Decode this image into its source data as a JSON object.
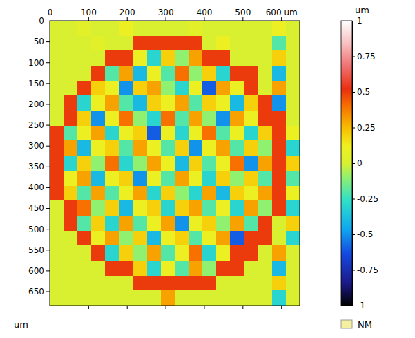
{
  "chart_data": {
    "type": "heatmap",
    "x_edges": [
      0,
      36,
      72,
      108,
      144,
      180,
      216,
      252,
      288,
      324,
      360,
      396,
      432,
      468,
      504,
      540,
      576,
      612,
      648
    ],
    "y_edges": [
      0,
      36,
      72,
      108,
      144,
      180,
      216,
      252,
      288,
      324,
      360,
      396,
      432,
      468,
      504,
      540,
      576,
      612,
      648,
      684
    ],
    "values": [
      [
        0,
        0,
        0.05,
        0,
        0,
        0.1,
        0,
        0,
        0,
        0,
        0.05,
        0,
        0,
        0,
        0,
        0,
        0.1,
        0
      ],
      [
        0,
        0,
        0,
        0.05,
        0,
        0,
        0.5,
        0.5,
        0.5,
        0.5,
        0.5,
        0,
        0.1,
        0,
        0,
        0,
        -0.2,
        0
      ],
      [
        0,
        0,
        0,
        0,
        0.5,
        0.5,
        0.1,
        -0.3,
        0.2,
        -0.1,
        0.3,
        0.5,
        0.5,
        0,
        0,
        0,
        0.2,
        0
      ],
      [
        0,
        0,
        0,
        0.5,
        -0.2,
        0.3,
        -0.4,
        0.1,
        -0.2,
        0.4,
        -0.1,
        0.2,
        -0.3,
        0.5,
        0.5,
        0,
        -0.4,
        0
      ],
      [
        0,
        0,
        0.5,
        0.2,
        0.1,
        -0.5,
        0.2,
        0.3,
        -0.1,
        -0.3,
        0.1,
        -0.6,
        0.3,
        0.1,
        0.5,
        0,
        0.3,
        0
      ],
      [
        0,
        0.5,
        -0.3,
        0.1,
        0.3,
        -0.2,
        -0.4,
        0.2,
        0.1,
        0.3,
        -0.2,
        0.2,
        0.1,
        -0.4,
        0.2,
        0.5,
        -0.5,
        0
      ],
      [
        0,
        0.5,
        0.2,
        -0.5,
        0.1,
        0.4,
        -0.1,
        -0.3,
        0.4,
        -0.2,
        0.3,
        -0.1,
        -0.5,
        0.3,
        0.1,
        0.5,
        0.5,
        0
      ],
      [
        0.5,
        -0.2,
        0.1,
        0.3,
        -0.3,
        0.1,
        0.2,
        -0.6,
        0.1,
        -0.3,
        0.1,
        0.4,
        -0.2,
        0.1,
        -0.3,
        0.2,
        0.5,
        0.1
      ],
      [
        0.5,
        0.3,
        -0.4,
        0.1,
        0.2,
        -0.2,
        0.3,
        0.1,
        -0.2,
        0.2,
        -0.5,
        0.1,
        0.3,
        -0.2,
        0.2,
        -0.1,
        0.5,
        -0.3
      ],
      [
        0.5,
        -0.3,
        0.2,
        -0.1,
        0.4,
        -0.3,
        -0.1,
        0.3,
        0.1,
        -0.4,
        0.2,
        -0.2,
        0.1,
        0.4,
        -0.5,
        0.3,
        0.5,
        0.2
      ],
      [
        0.5,
        0.1,
        0.3,
        -0.4,
        0.1,
        0.2,
        -0.5,
        0.1,
        -0.2,
        0.3,
        0.1,
        -0.3,
        0.2,
        -0.1,
        0.2,
        -0.2,
        0.5,
        -0.2
      ],
      [
        0.5,
        0.2,
        -0.2,
        0.3,
        -0.2,
        0.1,
        0.3,
        -0.3,
        0.2,
        -0.1,
        -0.3,
        0.3,
        -0.4,
        0.2,
        0.1,
        0.3,
        0.5,
        0.1
      ],
      [
        0,
        0.5,
        0.4,
        -0.1,
        0.2,
        -0.4,
        0.1,
        0.2,
        -0.3,
        0.2,
        0.3,
        -0.2,
        0.1,
        -0.3,
        0.3,
        -0.1,
        0.5,
        -0.3
      ],
      [
        0,
        0.5,
        -0.2,
        0.2,
        -0.3,
        0.3,
        -0.2,
        0.1,
        0.3,
        -0.5,
        0.1,
        0.2,
        -0.1,
        0.3,
        -0.2,
        0.5,
        0,
        0.2
      ],
      [
        0,
        0,
        0.5,
        0.1,
        0.3,
        -0.1,
        0.2,
        -0.4,
        0.1,
        0.2,
        -0.2,
        0.1,
        0.3,
        -0.6,
        0.5,
        0.5,
        0,
        -0.3
      ],
      [
        0,
        0,
        0,
        0.5,
        -0.3,
        0.2,
        -0.1,
        0.3,
        -0.2,
        0.1,
        0.4,
        -0.3,
        0.1,
        0.5,
        0.5,
        0,
        0.3,
        0
      ],
      [
        0,
        0,
        0,
        0,
        0.5,
        0.5,
        0.2,
        -0.3,
        0.1,
        -0.2,
        0.3,
        -0.1,
        0.5,
        0.5,
        0,
        0,
        -0.4,
        0
      ],
      [
        0,
        0,
        0,
        0,
        0,
        0,
        0.5,
        0.5,
        0.5,
        0.5,
        0.5,
        0.5,
        0,
        0,
        0,
        0,
        0.2,
        0
      ],
      [
        0,
        0,
        0,
        0,
        0,
        0,
        0,
        0,
        0.3,
        0,
        0,
        0,
        0,
        0,
        0,
        0,
        -0.3,
        0
      ]
    ],
    "xlim": [
      0,
      648
    ],
    "ylim": [
      0,
      684
    ],
    "xticks": [
      0,
      100,
      200,
      300,
      400,
      500,
      {
        "value": 600,
        "label": "600 um"
      }
    ],
    "yticks": [
      0,
      50,
      100,
      150,
      200,
      250,
      300,
      350,
      400,
      450,
      500,
      550,
      600,
      650
    ],
    "axis_label": "um",
    "colorbar": {
      "title": "um",
      "range": [
        -1,
        1
      ],
      "ticks": [
        1,
        0.75,
        0.5,
        0.25,
        0,
        -0.25,
        -0.5,
        -0.75,
        -1
      ]
    },
    "legend_label": "NM"
  }
}
